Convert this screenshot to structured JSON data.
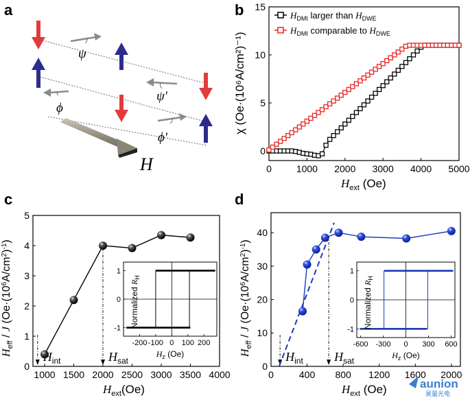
{
  "panels": {
    "a": {
      "letter": "a",
      "labels": {
        "psi": "ψ",
        "psi_prime": "ψ'",
        "phi": "ϕ",
        "phi_prime": "ϕ'",
        "field": "H"
      }
    },
    "b": {
      "letter": "b"
    },
    "c": {
      "letter": "c"
    },
    "d": {
      "letter": "d"
    }
  },
  "colors": {
    "up_arrow": "#2e2b8f",
    "down_arrow": "#e23b3b",
    "series_black": "#000000",
    "series_red": "#e8241e",
    "series_blue": "#1c38b8"
  },
  "watermark": {
    "text": "aunion",
    "sub": "昊量光电"
  },
  "chart_data": [
    {
      "id": "b",
      "type": "line",
      "xlim": [
        0,
        5000
      ],
      "ylim": [
        -1,
        15
      ],
      "xticks": [
        "0",
        "1000",
        "2000",
        "3000",
        "4000",
        "5000"
      ],
      "yticks": [
        "0",
        "5",
        "10",
        "15"
      ],
      "xlabel": {
        "main": "H",
        "sub": "ext",
        "unit": " (Oe)"
      },
      "ylabel": "χ (Oe·(10⁶A/cm²)⁻¹)",
      "legend_position": "top-left",
      "series": [
        {
          "name": {
            "pre": "H",
            "sub1": "DMI",
            "mid": " larger than ",
            "post": "H",
            "sub2": "DWE"
          },
          "color": "#000000",
          "marker": "square",
          "x": [
            0,
            100,
            200,
            300,
            400,
            500,
            600,
            700,
            800,
            900,
            1000,
            1100,
            1200,
            1300,
            1400,
            1500,
            1600,
            1700,
            1800,
            1900,
            2000,
            2100,
            2200,
            2300,
            2400,
            2500,
            2600,
            2700,
            2800,
            2900,
            3000,
            3100,
            3200,
            3300,
            3400,
            3500,
            3600,
            3700,
            3800,
            3900,
            4000,
            4100,
            4200,
            4300,
            4400,
            4500,
            4600,
            4700,
            4800,
            4900,
            5000
          ],
          "y": [
            0,
            0,
            0,
            0,
            0,
            0,
            0,
            -0.05,
            -0.15,
            -0.25,
            -0.3,
            -0.35,
            -0.45,
            -0.5,
            -0.3,
            0.6,
            1.2,
            1.6,
            2.0,
            2.4,
            2.8,
            3.2,
            3.6,
            4.0,
            4.4,
            4.8,
            5.2,
            5.6,
            6.0,
            6.4,
            6.8,
            7.2,
            7.6,
            8.0,
            8.4,
            8.8,
            9.2,
            9.6,
            10.0,
            10.4,
            10.8,
            11,
            11,
            11,
            11,
            11,
            11,
            11,
            11,
            11,
            11
          ]
        },
        {
          "name": {
            "pre": "H",
            "sub1": "DMI",
            "mid": " comparable to ",
            "post": "H",
            "sub2": "DWE"
          },
          "color": "#e8241e",
          "marker": "square",
          "x": [
            0,
            100,
            200,
            300,
            400,
            500,
            600,
            700,
            800,
            900,
            1000,
            1100,
            1200,
            1300,
            1400,
            1500,
            1600,
            1700,
            1800,
            1900,
            2000,
            2100,
            2200,
            2300,
            2400,
            2500,
            2600,
            2700,
            2800,
            2900,
            3000,
            3100,
            3200,
            3300,
            3400,
            3500,
            3600,
            3700,
            3800,
            3900,
            4000,
            4100,
            4200,
            4300,
            4400,
            4500,
            4600,
            4700,
            4800,
            4900,
            5000
          ],
          "y": [
            0.1,
            0.4,
            0.7,
            1.0,
            1.3,
            1.6,
            1.9,
            2.2,
            2.5,
            2.8,
            3.1,
            3.4,
            3.7,
            4.0,
            4.3,
            4.6,
            4.9,
            5.2,
            5.5,
            5.8,
            6.1,
            6.4,
            6.7,
            7.0,
            7.3,
            7.6,
            7.9,
            8.2,
            8.5,
            8.8,
            9.1,
            9.4,
            9.7,
            10.0,
            10.3,
            10.6,
            10.9,
            11,
            11,
            11,
            11,
            11,
            11,
            11,
            11,
            11,
            11,
            11,
            11,
            11,
            11
          ]
        }
      ]
    },
    {
      "id": "c",
      "type": "scatter",
      "xlim": [
        800,
        4000
      ],
      "ylim": [
        0,
        5
      ],
      "xticks": [
        "1000",
        "1500",
        "2000",
        "2500",
        "3000",
        "3500",
        "4000"
      ],
      "yticks": [
        "0",
        "1",
        "2",
        "3",
        "4",
        "5"
      ],
      "xlabel": {
        "main": "H",
        "sub": "ext",
        "unit": "(Oe)"
      },
      "ylabel": "H_eff / J (Oe·(10⁶A/cm²)⁻¹)",
      "annotations": [
        {
          "x": 880,
          "label": "H",
          "sub": "int"
        },
        {
          "x": 2000,
          "label": "H",
          "sub": "sat"
        }
      ],
      "series": [
        {
          "color": "#000000",
          "x": [
            1000,
            1500,
            2000,
            2500,
            3000,
            3500
          ],
          "y": [
            0.4,
            2.2,
            4.0,
            3.92,
            4.35,
            4.27
          ]
        }
      ],
      "inset": {
        "type": "line",
        "xlim": [
          -300,
          280
        ],
        "ylim": [
          -1.3,
          1.3
        ],
        "xticks": [
          "-200",
          "-100",
          "0",
          "100",
          "200"
        ],
        "yticks": [
          "-1",
          "0",
          "1"
        ],
        "xlabel": {
          "main": "H",
          "sub": "z",
          "unit": " (Oe)"
        },
        "ylabel": "Normalized R_H",
        "coercive_field": [
          -100,
          110
        ]
      }
    },
    {
      "id": "d",
      "type": "scatter",
      "xlim": [
        0,
        2100
      ],
      "ylim": [
        0,
        46
      ],
      "xticks": [
        "0",
        "400",
        "800",
        "1200",
        "1600",
        "2000"
      ],
      "yticks": [
        "0",
        "10",
        "20",
        "30",
        "40"
      ],
      "xlabel": {
        "main": "H",
        "sub": "ext",
        "unit": " (Oe)"
      },
      "ylabel": "H_eff / J (Oe·(10⁶A/cm²)⁻¹)",
      "annotations": [
        {
          "x": 100,
          "label": "H",
          "sub": "int"
        },
        {
          "x": 640,
          "label": "H",
          "sub": "sat"
        }
      ],
      "series": [
        {
          "color": "#1c38b8",
          "x": [
            350,
            400,
            500,
            600,
            750,
            1000,
            1500,
            2000
          ],
          "y": [
            16.5,
            30.5,
            35.0,
            38.5,
            40.0,
            38.8,
            38.3,
            40.5
          ]
        }
      ],
      "fit_line": {
        "x": [
          90,
          700
        ],
        "y": [
          0,
          43
        ]
      },
      "inset": {
        "type": "line",
        "xlim": [
          -650,
          650
        ],
        "ylim": [
          -1.3,
          1.3
        ],
        "xticks": [
          "-600",
          "-300",
          "0",
          "300",
          "600"
        ],
        "yticks": [
          "-1",
          "0",
          "1"
        ],
        "xlabel": {
          "main": "H",
          "sub": "z",
          "unit": " (Oe)"
        },
        "ylabel": "Normalized R_H",
        "coercive_field": [
          -290,
          290
        ]
      }
    }
  ]
}
